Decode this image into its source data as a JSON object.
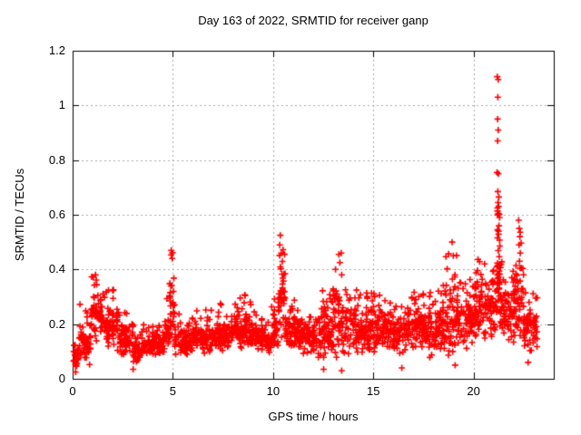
{
  "window": {
    "title": "Day 163 of 2022, SRMTID for receiver ganp"
  },
  "chart_data": {
    "type": "scatter",
    "title": "Day 163 of 2022, SRMTID for receiver ganp",
    "xlabel": "GPS time / hours",
    "ylabel": "SRMTID / TECUs",
    "series_name": "SRMTID for receiver ganp",
    "xlim": [
      0,
      24
    ],
    "ylim": [
      0,
      1.2
    ],
    "xticks": [
      {
        "v": 0,
        "label": "0"
      },
      {
        "v": 5,
        "label": "5"
      },
      {
        "v": 10,
        "label": "10"
      },
      {
        "v": 15,
        "label": "15"
      },
      {
        "v": 20,
        "label": "20"
      }
    ],
    "yticks": [
      {
        "v": 0,
        "label": "0"
      },
      {
        "v": 0.2,
        "label": "0.2"
      },
      {
        "v": 0.4,
        "label": "0.4"
      },
      {
        "v": 0.6,
        "label": "0.6"
      },
      {
        "v": 0.8,
        "label": "0.8"
      },
      {
        "v": 1,
        "label": "1"
      },
      {
        "v": 1.2,
        "label": "1.2"
      }
    ],
    "grid": true,
    "grid_color": "#a8a8a8",
    "marker": {
      "shape": "plus",
      "color": "#ff0000",
      "size": 7,
      "stroke": 1.6
    },
    "border_color": "#000000",
    "seed": 163,
    "tail_probability": 0.07,
    "cloud_segments": [
      [
        0.0,
        0.3,
        27,
        0.03,
        0.14,
        0.18
      ],
      [
        0.3,
        0.9,
        54,
        0.05,
        0.2,
        0.3
      ],
      [
        0.9,
        1.6,
        70,
        0.12,
        0.33,
        0.38
      ],
      [
        1.6,
        2.3,
        63,
        0.1,
        0.28,
        0.33
      ],
      [
        2.3,
        3.0,
        60,
        0.07,
        0.22,
        0.27
      ],
      [
        3.0,
        3.5,
        45,
        0.05,
        0.16,
        0.2
      ],
      [
        3.5,
        4.6,
        95,
        0.08,
        0.17,
        0.22
      ],
      [
        4.6,
        4.82,
        20,
        0.1,
        0.25,
        0.33
      ],
      [
        4.82,
        5.1,
        33,
        0.12,
        0.42,
        0.47
      ],
      [
        5.1,
        5.9,
        70,
        0.08,
        0.2,
        0.24
      ],
      [
        5.9,
        7.0,
        100,
        0.09,
        0.21,
        0.26
      ],
      [
        7.0,
        8.0,
        90,
        0.1,
        0.22,
        0.28
      ],
      [
        8.0,
        9.0,
        95,
        0.1,
        0.26,
        0.31
      ],
      [
        9.0,
        9.9,
        80,
        0.09,
        0.2,
        0.26
      ],
      [
        9.9,
        10.25,
        32,
        0.1,
        0.25,
        0.33
      ],
      [
        10.25,
        10.6,
        40,
        0.14,
        0.45,
        0.53
      ],
      [
        10.6,
        11.3,
        65,
        0.1,
        0.25,
        0.3
      ],
      [
        11.3,
        12.2,
        80,
        0.08,
        0.24,
        0.3
      ],
      [
        12.2,
        12.9,
        65,
        0.06,
        0.28,
        0.33
      ],
      [
        12.9,
        13.5,
        60,
        0.05,
        0.38,
        0.46
      ],
      [
        13.5,
        14.9,
        125,
        0.08,
        0.28,
        0.33
      ],
      [
        14.9,
        15.6,
        65,
        0.09,
        0.3,
        0.34
      ],
      [
        15.6,
        16.7,
        100,
        0.09,
        0.24,
        0.28
      ],
      [
        16.7,
        17.8,
        100,
        0.1,
        0.28,
        0.32
      ],
      [
        17.8,
        18.6,
        75,
        0.07,
        0.3,
        0.36
      ],
      [
        18.6,
        19.2,
        60,
        0.06,
        0.38,
        0.5
      ],
      [
        19.2,
        20.0,
        75,
        0.1,
        0.32,
        0.38
      ],
      [
        20.0,
        21.0,
        100,
        0.13,
        0.38,
        0.44
      ],
      [
        21.0,
        21.15,
        15,
        0.15,
        0.35,
        0.4
      ],
      [
        21.15,
        21.32,
        40,
        0.18,
        0.58,
        0.65
      ],
      [
        21.32,
        21.5,
        18,
        0.15,
        0.4,
        0.45
      ],
      [
        21.5,
        22.1,
        60,
        0.13,
        0.35,
        0.42
      ],
      [
        22.1,
        22.5,
        40,
        0.12,
        0.45,
        0.58
      ],
      [
        22.5,
        23.2,
        60,
        0.1,
        0.28,
        0.33
      ]
    ],
    "outliers": [
      [
        21.18,
        1.105
      ],
      [
        21.23,
        1.095
      ],
      [
        21.21,
        1.03
      ],
      [
        21.2,
        0.95
      ],
      [
        21.23,
        0.91
      ],
      [
        21.2,
        0.87
      ],
      [
        21.17,
        0.755
      ],
      [
        21.24,
        0.75
      ],
      [
        21.21,
        0.685
      ],
      [
        21.26,
        0.665
      ],
      [
        21.22,
        0.645
      ],
      [
        21.19,
        0.625
      ],
      [
        21.24,
        0.605
      ],
      [
        22.25,
        0.58
      ],
      [
        22.28,
        0.55
      ],
      [
        22.31,
        0.52
      ],
      [
        22.27,
        0.49
      ],
      [
        22.33,
        0.46
      ],
      [
        22.29,
        0.43
      ],
      [
        22.32,
        0.405
      ],
      [
        10.36,
        0.525
      ],
      [
        10.33,
        0.49
      ],
      [
        10.41,
        0.46
      ],
      [
        4.92,
        0.47
      ],
      [
        4.97,
        0.44
      ],
      [
        13.28,
        0.455
      ],
      [
        13.33,
        0.425
      ],
      [
        18.93,
        0.5
      ],
      [
        18.99,
        0.45
      ],
      [
        1.14,
        0.38
      ],
      [
        20.55,
        0.42
      ],
      [
        0.15,
        0.025
      ],
      [
        3.02,
        0.035
      ],
      [
        12.52,
        0.035
      ],
      [
        13.42,
        0.03
      ],
      [
        16.42,
        0.04
      ],
      [
        19.08,
        0.05
      ],
      [
        22.72,
        0.06
      ]
    ]
  }
}
